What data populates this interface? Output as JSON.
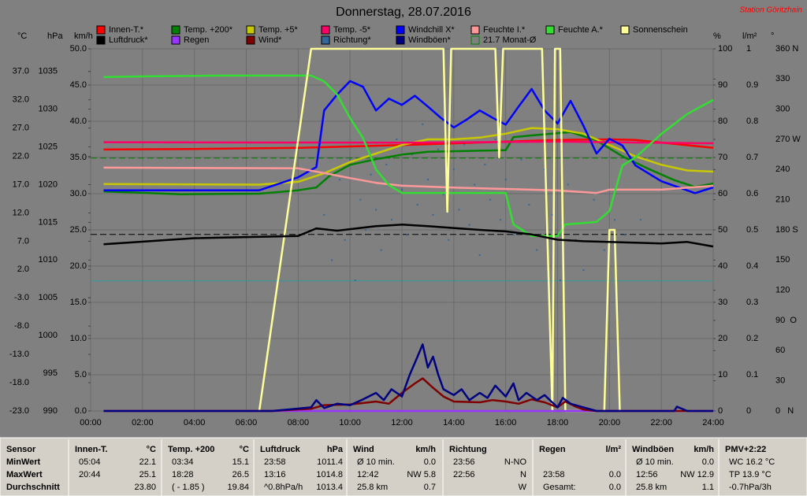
{
  "chart_data": {
    "type": "line",
    "title": "Donnerstag, 28.07.2016",
    "station": "Station Göritzhain",
    "xlim": [
      0,
      24
    ],
    "xticks": [
      {
        "value": 0,
        "label": "00:00"
      },
      {
        "value": 2,
        "label": "02:00"
      },
      {
        "value": 4,
        "label": "04:00"
      },
      {
        "value": 6,
        "label": "06:00"
      },
      {
        "value": 8,
        "label": "08:00"
      },
      {
        "value": 10,
        "label": "10:00"
      },
      {
        "value": 12,
        "label": "12:00"
      },
      {
        "value": 14,
        "label": "14:00"
      },
      {
        "value": 16,
        "label": "16:00"
      },
      {
        "value": 18,
        "label": "18:00"
      },
      {
        "value": 20,
        "label": "20:00"
      },
      {
        "value": 22,
        "label": "22:00"
      },
      {
        "value": 24,
        "label": "24:00"
      }
    ],
    "grid": true,
    "grid_axis": "km/h",
    "axes": [
      {
        "label": "°C",
        "side": "left",
        "lim": [
          -23,
          41
        ],
        "ticks": [
          {
            "value": -23,
            "label": "-23.0"
          },
          {
            "value": -18,
            "label": "-18.0"
          },
          {
            "value": -13,
            "label": "-13.0"
          },
          {
            "value": -8,
            "label": "-8.0"
          },
          {
            "value": -3,
            "label": "-3.0"
          },
          {
            "value": 2,
            "label": "2.0"
          },
          {
            "value": 7,
            "label": "7.0"
          },
          {
            "value": 12,
            "label": "12.0"
          },
          {
            "value": 17,
            "label": "17.0"
          },
          {
            "value": 22,
            "label": "22.0"
          },
          {
            "value": 27,
            "label": "27.0"
          },
          {
            "value": 32,
            "label": "32.0"
          },
          {
            "value": 37,
            "label": "37.0"
          }
        ]
      },
      {
        "label": "hPa",
        "side": "left",
        "lim": [
          990,
          1038
        ],
        "ticks": [
          990,
          995,
          1000,
          1005,
          1010,
          1015,
          1020,
          1025,
          1030,
          1035
        ]
      },
      {
        "label": "km/h",
        "side": "left",
        "lim": [
          0,
          50
        ],
        "ticks": [
          {
            "value": 0,
            "label": "0.0"
          },
          {
            "value": 5,
            "label": "5.0"
          },
          {
            "value": 10,
            "label": "10.0"
          },
          {
            "value": 15,
            "label": "15.0"
          },
          {
            "value": 20,
            "label": "20.0"
          },
          {
            "value": 25,
            "label": "25.0"
          },
          {
            "value": 30,
            "label": "30.0"
          },
          {
            "value": 35,
            "label": "35.0"
          },
          {
            "value": 40,
            "label": "40.0"
          },
          {
            "value": 45,
            "label": "45.0"
          },
          {
            "value": 50,
            "label": "50.0"
          }
        ]
      },
      {
        "label": "%",
        "side": "right",
        "lim": [
          0,
          100
        ],
        "ticks": [
          0,
          10,
          20,
          30,
          40,
          50,
          60,
          70,
          80,
          90,
          100
        ]
      },
      {
        "label": "l/m²",
        "side": "right",
        "lim": [
          0,
          1
        ],
        "ticks": [
          0,
          0.1,
          0.2,
          0.3,
          0.4,
          0.5,
          0.6,
          0.7,
          0.8,
          0.9,
          1
        ]
      },
      {
        "label": "°",
        "side": "right",
        "lim": [
          0,
          360
        ],
        "ticks": [
          {
            "value": 0,
            "label": "0   N"
          },
          30,
          60,
          {
            "value": 90,
            "label": "90  O"
          },
          120,
          150,
          {
            "value": 180,
            "label": "180 S"
          },
          210,
          240,
          {
            "value": 270,
            "label": "270 W"
          },
          300,
          330,
          {
            "value": 360,
            "label": "360 N"
          }
        ]
      }
    ],
    "series": [
      {
        "name": "Innen-T.*",
        "color": "#ff0000",
        "axis": "°C",
        "type": "line",
        "x": [
          0.5,
          4,
          8,
          12,
          16,
          18,
          20,
          21,
          22.5,
          24
        ],
        "values": [
          23.2,
          23.3,
          23.5,
          24.0,
          24.6,
          24.9,
          25.0,
          24.9,
          24.2,
          23.5
        ]
      },
      {
        "name": "Temp. +200*",
        "color": "#008000",
        "axis": "°C",
        "type": "line",
        "x": [
          0.5,
          3.5,
          6.5,
          8,
          8.7,
          9.2,
          10,
          11,
          12,
          13,
          14,
          15,
          16,
          16.3,
          17,
          18.5,
          19.5,
          20.5,
          21.5,
          22.5,
          23.3,
          24
        ],
        "values": [
          15.8,
          15.3,
          15.4,
          16.0,
          16.5,
          18.5,
          20.5,
          21.5,
          22.3,
          22.8,
          22.9,
          23.0,
          23.1,
          25.4,
          25.7,
          26.3,
          24.8,
          22.0,
          19.8,
          17.8,
          16.6,
          17.2
        ]
      },
      {
        "name": "Temp. +5*",
        "color": "#c8c800",
        "axis": "°C",
        "type": "line",
        "x": [
          0.5,
          6.5,
          8,
          9,
          10,
          11,
          12,
          13,
          14,
          15,
          16,
          17,
          18,
          19,
          20,
          21,
          22,
          23,
          24
        ],
        "values": [
          17.1,
          17.0,
          17.5,
          19.0,
          21.0,
          22.5,
          24.0,
          25.0,
          25.0,
          25.3,
          26.0,
          27.0,
          26.8,
          26.0,
          24.0,
          22.0,
          20.5,
          19.5,
          19.3
        ]
      },
      {
        "name": "Temp. -5*",
        "color": "#ff0066",
        "axis": "°C",
        "type": "line",
        "x": [
          0.5,
          12,
          18,
          24
        ],
        "values": [
          24.5,
          24.4,
          24.6,
          24.3
        ]
      },
      {
        "name": "Windchill X*",
        "color": "#0000ff",
        "axis": "°C",
        "type": "line",
        "x": [
          0.5,
          6.5,
          8,
          8.7,
          9,
          9.5,
          10,
          10.5,
          11,
          11.5,
          12,
          12.5,
          13,
          13.5,
          14,
          14.5,
          15,
          15.5,
          16,
          16.5,
          17,
          17.5,
          18,
          18.5,
          19,
          19.5,
          20,
          20.5,
          21,
          22,
          23.3,
          24
        ],
        "values": [
          16.0,
          16.0,
          18.3,
          20.1,
          30.1,
          32.9,
          35.3,
          34.3,
          30.1,
          32.2,
          31.1,
          32.7,
          30.8,
          28.8,
          27.1,
          28.5,
          30.1,
          28.8,
          27.6,
          30.8,
          33.9,
          30.1,
          27.8,
          31.8,
          27.4,
          22.5,
          25.1,
          23.9,
          20.4,
          17.6,
          15.5,
          16.5
        ]
      },
      {
        "name": "Feuchte I.*",
        "color": "#ff9999",
        "axis": "%",
        "type": "line",
        "x": [
          0.5,
          8,
          9,
          10,
          11,
          12,
          14,
          16,
          18,
          19.5,
          20,
          22,
          24
        ],
        "values": [
          67.2,
          67.0,
          65.7,
          64.3,
          63.0,
          62.2,
          61.7,
          61.3,
          60.9,
          60.2,
          61.1,
          61.1,
          62.2
        ]
      },
      {
        "name": "Feuchte A.*",
        "color": "#33dd33",
        "axis": "%",
        "type": "line",
        "x": [
          0.5,
          2,
          5,
          8.5,
          9,
          9.5,
          10,
          10.5,
          11,
          11.5,
          12,
          14,
          16,
          16.3,
          17,
          18,
          18.3,
          19.5,
          20,
          20.5,
          21,
          22,
          23,
          24
        ],
        "values": [
          92.2,
          92.4,
          92.6,
          92.6,
          91.0,
          87.4,
          80.9,
          75.4,
          66.7,
          62.4,
          60.2,
          60.2,
          60.2,
          51.5,
          48.3,
          48.3,
          51.5,
          52.2,
          55.2,
          67.8,
          70.0,
          76.5,
          82.0,
          85.9
        ]
      },
      {
        "name": "Sonnenschein",
        "color": "#ffff99",
        "axis": "%",
        "type": "line",
        "x": [
          0.5,
          6.5,
          8.5,
          13.6,
          13.75,
          13.9,
          15.6,
          15.75,
          15.9,
          17.4,
          17.8,
          17.9,
          18.1,
          18.3,
          19.8,
          20.0,
          20.2,
          20.4,
          24
        ],
        "values": [
          0,
          0,
          100,
          100,
          55,
          100,
          100,
          70,
          100,
          100,
          0,
          100,
          100,
          0,
          0,
          50,
          50,
          0,
          0
        ]
      },
      {
        "name": "Luftdruck*",
        "color": "#000000",
        "axis": "hPa",
        "type": "line",
        "x": [
          0.5,
          4,
          8,
          8.7,
          9.5,
          11,
          12,
          13,
          15,
          16,
          17,
          18,
          19,
          21,
          22,
          23,
          24
        ],
        "values": [
          1012.1,
          1012.9,
          1013.2,
          1014.2,
          1013.9,
          1014.5,
          1014.7,
          1014.5,
          1014.0,
          1013.8,
          1013.4,
          1012.7,
          1012.5,
          1012.3,
          1012.2,
          1012.4,
          1011.8
        ]
      },
      {
        "name": "Regen",
        "color": "#9933ff",
        "axis": "l/m²",
        "type": "line",
        "x": [
          0.5,
          24
        ],
        "values": [
          0,
          0
        ]
      },
      {
        "name": "Wind*",
        "color": "#800000",
        "axis": "km/h",
        "type": "line",
        "x": [
          0.5,
          7,
          8.5,
          9,
          10,
          11,
          11.5,
          12,
          12.5,
          12.8,
          13.2,
          13.6,
          14,
          15,
          15.5,
          16,
          16.5,
          17,
          17.5,
          18,
          18.3,
          18.7,
          19,
          19.5,
          24
        ],
        "values": [
          0,
          0,
          0.3,
          0.8,
          0.9,
          1.3,
          1.0,
          2.5,
          3.8,
          4.5,
          3.2,
          2.0,
          1.3,
          1.2,
          1.5,
          1.3,
          1.0,
          1.6,
          1.2,
          0.5,
          1.3,
          0.6,
          0.2,
          0,
          0
        ]
      },
      {
        "name": "Richtung*",
        "color": "#336699",
        "axis": "°",
        "type": "scatter",
        "x": [
          9.0,
          9.3,
          9.6,
          9.8,
          10.0,
          10.2,
          10.4,
          10.6,
          10.8,
          11.0,
          11.2,
          11.4,
          11.6,
          11.8,
          12.0,
          12.2,
          12.4,
          12.6,
          12.8,
          13.0,
          13.2,
          13.4,
          13.6,
          13.8,
          14.0,
          14.2,
          14.4,
          14.6,
          14.8,
          15.0,
          15.2,
          15.4,
          15.6,
          15.8,
          16.0,
          16.3,
          16.6,
          16.9,
          17.2,
          17.5,
          17.8,
          18.1,
          18.4,
          18.7,
          19.0,
          19.4,
          19.8,
          20.2,
          20.6,
          21.2
        ],
        "values": [
          195,
          150,
          230,
          170,
          250,
          130,
          210,
          180,
          235,
          200,
          160,
          245,
          190,
          270,
          220,
          175,
          255,
          205,
          285,
          230,
          195,
          260,
          215,
          170,
          240,
          200,
          265,
          185,
          225,
          155,
          245,
          210,
          270,
          190,
          230,
          175,
          250,
          205,
          160,
          240,
          195,
          130,
          225,
          170,
          140,
          210,
          160,
          190,
          175,
          190
        ]
      },
      {
        "name": "Windböen*",
        "color": "#000080",
        "axis": "km/h",
        "type": "line",
        "x": [
          0.5,
          7,
          8.5,
          8.7,
          9,
          9.5,
          10,
          10.5,
          11,
          11.3,
          11.6,
          12,
          12.3,
          12.6,
          12.8,
          13,
          13.2,
          13.4,
          13.6,
          14,
          14.3,
          14.6,
          15,
          15.3,
          15.6,
          16,
          16.3,
          16.5,
          16.8,
          17.2,
          17.5,
          18,
          18.2,
          18.5,
          19,
          19.5,
          22.5,
          22.6,
          23,
          24
        ],
        "values": [
          0,
          0,
          0.5,
          1.5,
          0.4,
          1.0,
          0.8,
          1.6,
          2.5,
          1.5,
          3.0,
          2.0,
          5.0,
          7.5,
          9.2,
          6.0,
          7.5,
          5.0,
          3.0,
          2.2,
          3.0,
          1.5,
          2.5,
          1.8,
          3.5,
          2.0,
          3.8,
          1.5,
          2.5,
          1.5,
          2.2,
          0.5,
          1.8,
          1.0,
          0.5,
          0,
          0,
          0.6,
          0,
          0
        ]
      }
    ],
    "reference_lines": [
      {
        "label": "21.7 Monat-Ø",
        "value": 21.7,
        "axis": "°C",
        "color": "#008000",
        "dashed": true
      },
      {
        "value": 1013.4,
        "axis": "hPa",
        "color": "#000000",
        "dashed": true
      },
      {
        "value": 0,
        "axis": "°C",
        "color": "#339999",
        "dashed": false
      }
    ]
  },
  "stats": {
    "sections": [
      {
        "title": "Sensor",
        "rows": [
          [
            "MinWert"
          ],
          [
            "MaxWert"
          ],
          [
            "Durchschnitt"
          ]
        ]
      },
      {
        "title": "Innen-T.",
        "unit": "°C",
        "rows": [
          [
            "05:04",
            "22.1"
          ],
          [
            "20:44",
            "25.1"
          ],
          [
            null,
            "23.80"
          ]
        ]
      },
      {
        "title": "Temp. +200",
        "unit": "°C",
        "rows": [
          [
            "03:34",
            "15.1"
          ],
          [
            "18:28",
            "26.5"
          ],
          [
            "( - 1.85 )",
            "19.84"
          ]
        ]
      },
      {
        "title": "Luftdruck",
        "unit": "hPa",
        "rows": [
          [
            "23:58",
            "1011.4"
          ],
          [
            "13:16",
            "1014.8"
          ],
          [
            "^0.8hPa/h",
            "1013.4"
          ]
        ]
      },
      {
        "title": "Wind",
        "unit": "km/h",
        "rows": [
          [
            "Ø 10 min.",
            "0.0"
          ],
          [
            "12:42",
            "NW 5.8"
          ],
          [
            "25.8 km",
            "0.7"
          ]
        ]
      },
      {
        "title": "Richtung",
        "rows": [
          [
            "23:56",
            "N-NO"
          ],
          [
            "22:56",
            "N"
          ],
          [
            null,
            "W"
          ]
        ]
      },
      {
        "title": "Regen",
        "unit": "l/m²",
        "rows": [
          [],
          [
            "23:58",
            "0.0"
          ],
          [
            "Gesamt:",
            "0.0"
          ]
        ]
      },
      {
        "title": "Windböen",
        "unit": "km/h",
        "rows": [
          [
            "Ø 10 min.",
            "0.0"
          ],
          [
            "12:56",
            "NW 12.9"
          ],
          [
            "25.8 km",
            "1.1"
          ]
        ]
      },
      {
        "title": "PMV+2:22",
        "rows": [
          [
            "WC 16.2 °C"
          ],
          [
            "TP 13.9 °C"
          ],
          [
            "-0.7hPa/3h"
          ]
        ]
      }
    ]
  }
}
